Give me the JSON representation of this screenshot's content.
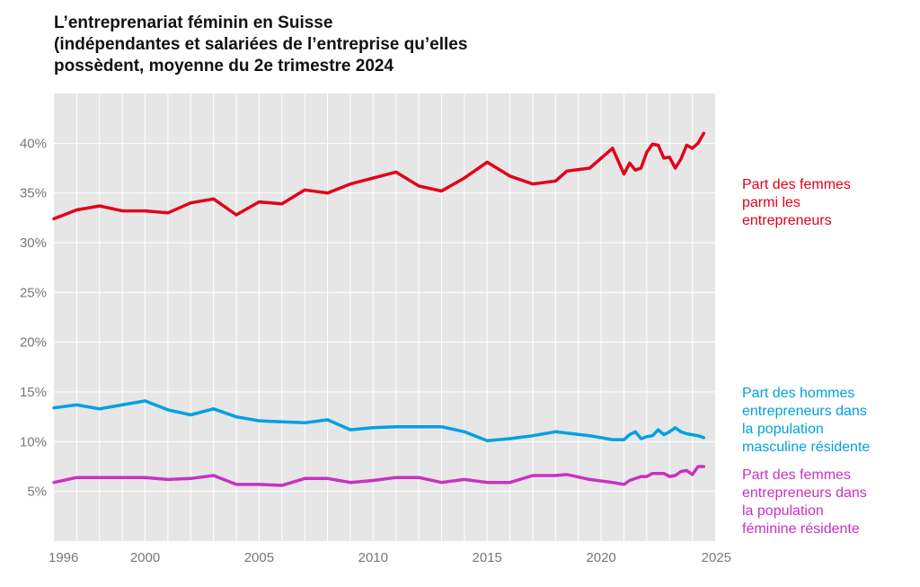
{
  "title_lines": [
    "L’entreprenariat féminin en Suisse",
    "(indépendantes et salariées de l’entreprise qu’elles",
    "possèdent, moyenne du 2e trimestre 2024"
  ],
  "chart_data": {
    "type": "line",
    "xlim": [
      1996,
      2025
    ],
    "ylim": [
      0,
      45
    ],
    "x_ticks": [
      1996,
      2000,
      2005,
      2010,
      2015,
      2020,
      2025
    ],
    "y_ticks": [
      5,
      10,
      15,
      20,
      25,
      30,
      35,
      40
    ],
    "y_tick_suffix": "%",
    "grid": true,
    "legend_placement": "right, labels beside line ends",
    "series": [
      {
        "name": "Part des femmes parmi les entrepreneurs",
        "label_lines": [
          "Part des femmes",
          "parmi les",
          "entrepreneurs"
        ],
        "color": "#e2001a",
        "points": [
          [
            1996,
            32.4
          ],
          [
            1997,
            33.3
          ],
          [
            1998,
            33.7
          ],
          [
            1999,
            33.2
          ],
          [
            2000,
            33.2
          ],
          [
            2001,
            33.0
          ],
          [
            2002,
            34.0
          ],
          [
            2003,
            34.4
          ],
          [
            2004,
            32.8
          ],
          [
            2005,
            34.1
          ],
          [
            2006,
            33.9
          ],
          [
            2007,
            35.3
          ],
          [
            2008,
            35.0
          ],
          [
            2009,
            35.9
          ],
          [
            2010,
            36.5
          ],
          [
            2011,
            37.1
          ],
          [
            2012,
            35.7
          ],
          [
            2013,
            35.2
          ],
          [
            2014,
            36.5
          ],
          [
            2015,
            38.1
          ],
          [
            2016,
            36.7
          ],
          [
            2017,
            35.9
          ],
          [
            2018,
            36.2
          ],
          [
            2018.5,
            37.2
          ],
          [
            2019.5,
            37.5
          ],
          [
            2020.5,
            39.5
          ],
          [
            2021,
            36.9
          ],
          [
            2021.25,
            38.0
          ],
          [
            2021.5,
            37.3
          ],
          [
            2021.75,
            37.5
          ],
          [
            2022,
            39.1
          ],
          [
            2022.25,
            39.9
          ],
          [
            2022.5,
            39.8
          ],
          [
            2022.75,
            38.5
          ],
          [
            2023,
            38.6
          ],
          [
            2023.25,
            37.5
          ],
          [
            2023.5,
            38.4
          ],
          [
            2023.75,
            39.8
          ],
          [
            2024,
            39.5
          ],
          [
            2024.25,
            40.0
          ],
          [
            2024.5,
            41.0
          ]
        ]
      },
      {
        "name": "Part des hommes entrepreneurs dans la population masculine résidente",
        "label_lines": [
          "Part des hommes",
          "entrepreneurs dans",
          "la population",
          "masculine résidente"
        ],
        "color": "#00a1e0",
        "points": [
          [
            1996,
            13.4
          ],
          [
            1997,
            13.7
          ],
          [
            1998,
            13.3
          ],
          [
            1999,
            13.7
          ],
          [
            2000,
            14.1
          ],
          [
            2001,
            13.2
          ],
          [
            2002,
            12.7
          ],
          [
            2003,
            13.3
          ],
          [
            2004,
            12.5
          ],
          [
            2005,
            12.1
          ],
          [
            2006,
            12.0
          ],
          [
            2007,
            11.9
          ],
          [
            2008,
            12.2
          ],
          [
            2009,
            11.2
          ],
          [
            2010,
            11.4
          ],
          [
            2011,
            11.5
          ],
          [
            2012,
            11.5
          ],
          [
            2013,
            11.5
          ],
          [
            2014,
            11.0
          ],
          [
            2015,
            10.1
          ],
          [
            2016,
            10.3
          ],
          [
            2017,
            10.6
          ],
          [
            2018,
            11.0
          ],
          [
            2019.5,
            10.6
          ],
          [
            2020.5,
            10.2
          ],
          [
            2021,
            10.2
          ],
          [
            2021.25,
            10.7
          ],
          [
            2021.5,
            11.0
          ],
          [
            2021.75,
            10.3
          ],
          [
            2022,
            10.5
          ],
          [
            2022.25,
            10.6
          ],
          [
            2022.5,
            11.2
          ],
          [
            2022.75,
            10.7
          ],
          [
            2023,
            11.0
          ],
          [
            2023.25,
            11.4
          ],
          [
            2023.5,
            11.0
          ],
          [
            2023.75,
            10.8
          ],
          [
            2024,
            10.7
          ],
          [
            2024.25,
            10.6
          ],
          [
            2024.5,
            10.4
          ]
        ]
      },
      {
        "name": "Part des femmes entrepreneurs dans la population féminine résidente",
        "label_lines": [
          "Part des femmes",
          "entrepreneurs dans",
          "la population",
          "féminine résidente"
        ],
        "color": "#c832c0",
        "points": [
          [
            1996,
            5.9
          ],
          [
            1997,
            6.4
          ],
          [
            1998,
            6.4
          ],
          [
            1999,
            6.4
          ],
          [
            2000,
            6.4
          ],
          [
            2001,
            6.2
          ],
          [
            2002,
            6.3
          ],
          [
            2003,
            6.6
          ],
          [
            2004,
            5.7
          ],
          [
            2005,
            5.7
          ],
          [
            2006,
            5.6
          ],
          [
            2007,
            6.3
          ],
          [
            2008,
            6.3
          ],
          [
            2009,
            5.9
          ],
          [
            2010,
            6.1
          ],
          [
            2011,
            6.4
          ],
          [
            2012,
            6.4
          ],
          [
            2013,
            5.9
          ],
          [
            2014,
            6.2
          ],
          [
            2015,
            5.9
          ],
          [
            2016,
            5.9
          ],
          [
            2017,
            6.6
          ],
          [
            2018,
            6.6
          ],
          [
            2018.5,
            6.7
          ],
          [
            2019.5,
            6.2
          ],
          [
            2020.5,
            5.9
          ],
          [
            2021,
            5.7
          ],
          [
            2021.25,
            6.1
          ],
          [
            2021.75,
            6.5
          ],
          [
            2022,
            6.5
          ],
          [
            2022.25,
            6.8
          ],
          [
            2022.5,
            6.8
          ],
          [
            2022.75,
            6.8
          ],
          [
            2023,
            6.5
          ],
          [
            2023.25,
            6.6
          ],
          [
            2023.5,
            7.0
          ],
          [
            2023.75,
            7.1
          ],
          [
            2024,
            6.7
          ],
          [
            2024.25,
            7.5
          ],
          [
            2024.5,
            7.5
          ]
        ]
      }
    ]
  }
}
